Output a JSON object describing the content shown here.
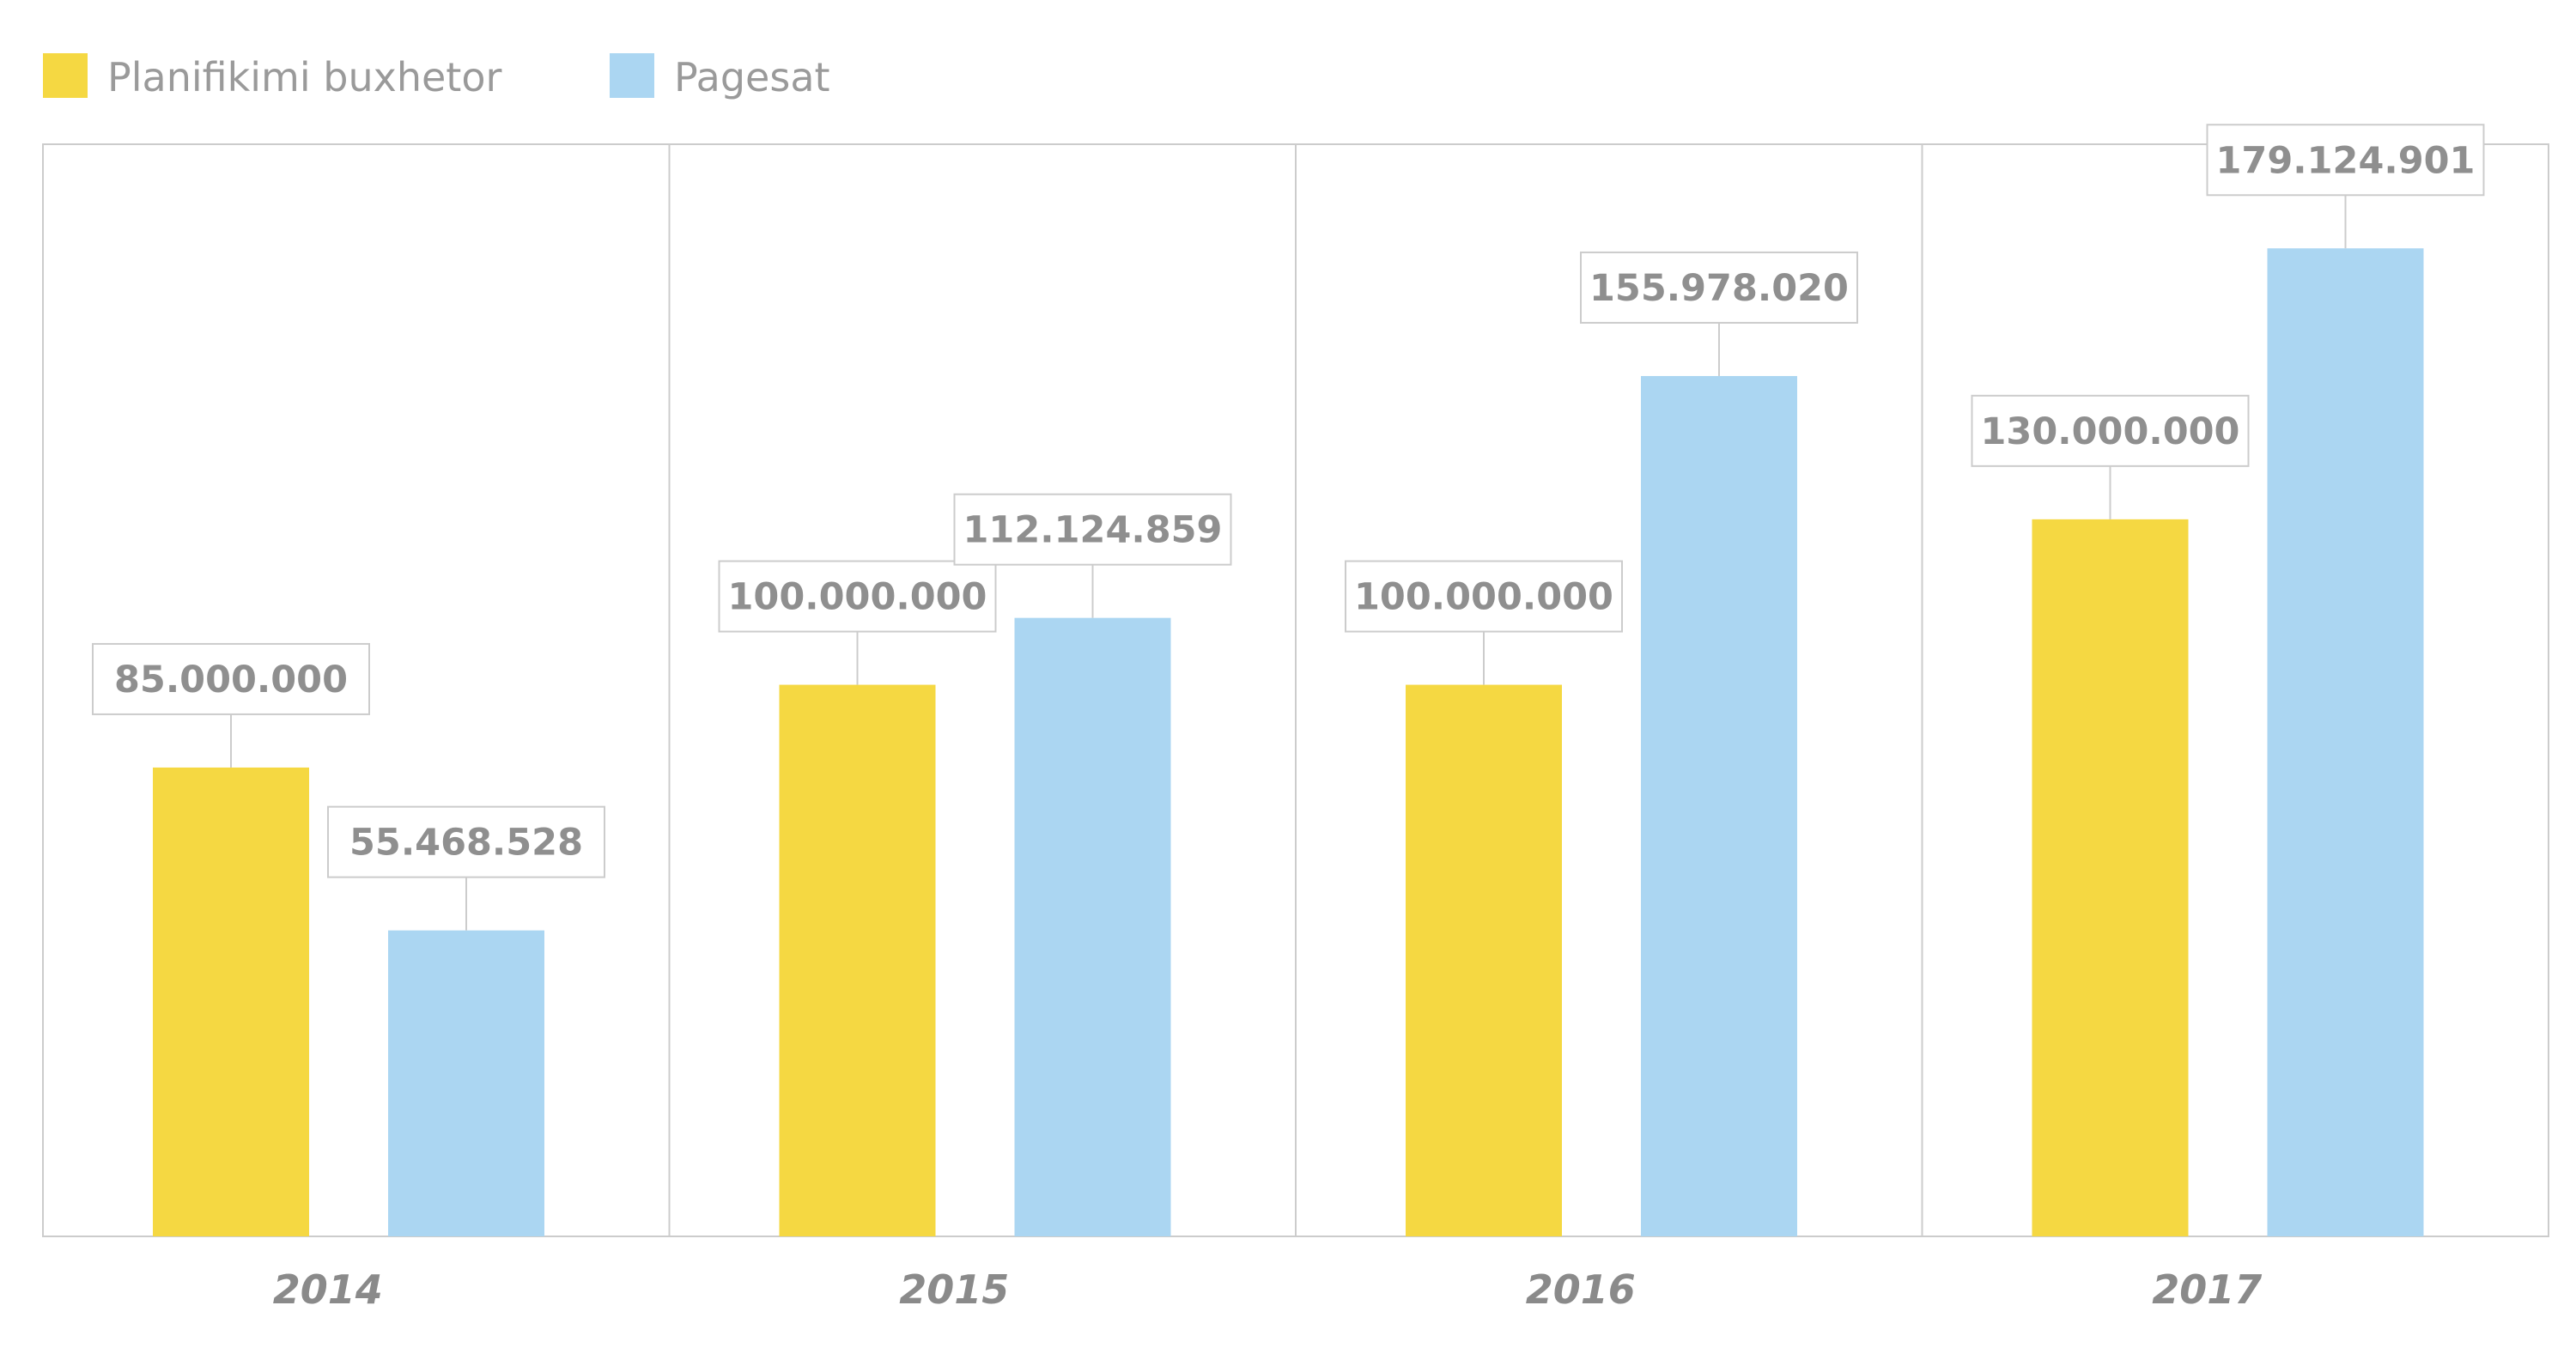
{
  "colors": {
    "budget": "#f5d842",
    "payments": "#abd6f2",
    "frame": "#cccccc",
    "text": "#8f8f8f"
  },
  "legend": [
    {
      "label": "Planifikimi buxhetor",
      "color": "#f5d842"
    },
    {
      "label": "Pagesat",
      "color": "#abd6f2"
    }
  ],
  "chart_data": {
    "type": "bar",
    "categories": [
      "2014",
      "2015",
      "2016",
      "2017"
    ],
    "series": [
      {
        "name": "Planifikimi buxhetor",
        "values": [
          85000000,
          100000000,
          100000000,
          130000000
        ],
        "labels": [
          "85.000.000",
          "100.000.000",
          "100.000.000",
          "130.000.000"
        ]
      },
      {
        "name": "Pagesat",
        "values": [
          55468528,
          112124859,
          155978020,
          179124901
        ],
        "labels": [
          "55.468.528",
          "112.124.859",
          "155.978.020",
          "179.124.901"
        ]
      }
    ],
    "ylim": [
      0,
      198000000
    ],
    "grid": false,
    "legend_position": "top-left"
  }
}
